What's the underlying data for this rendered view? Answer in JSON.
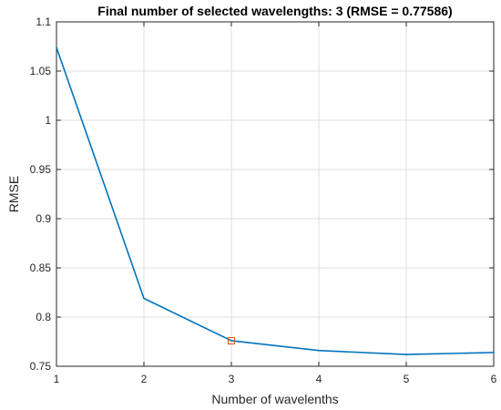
{
  "chart_data": {
    "type": "line",
    "title": "Final number of selected wavelengths: 3  (RMSE = 0.77586)",
    "xlabel": "Number of wavelenths",
    "ylabel": "RMSE",
    "xlim": [
      1,
      6
    ],
    "ylim": [
      0.75,
      1.1
    ],
    "xticks": [
      1,
      2,
      3,
      4,
      5,
      6
    ],
    "xtick_labels": [
      "1",
      "2",
      "3",
      "4",
      "5",
      "6"
    ],
    "yticks": [
      0.75,
      0.8,
      0.85,
      0.9,
      0.95,
      1,
      1.05,
      1.1
    ],
    "ytick_labels": [
      "0.75",
      "0.8",
      "0.85",
      "0.9",
      "0.95",
      "1",
      "1.05",
      "1.1"
    ],
    "grid": true,
    "series": [
      {
        "x": [
          1,
          2,
          3,
          4,
          5,
          6
        ],
        "y": [
          1.074,
          0.819,
          0.776,
          0.766,
          0.762,
          0.764
        ],
        "color": "#0072BD"
      }
    ],
    "highlight": {
      "x": 3,
      "y": 0.7759,
      "marker": "square",
      "color": "#D95319"
    }
  }
}
